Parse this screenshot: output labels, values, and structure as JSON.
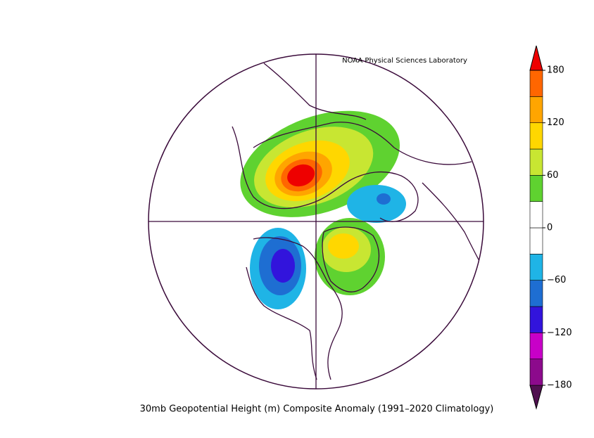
{
  "header": {
    "credit": "NOAA Physical Sciences Laboratory"
  },
  "caption": "30mb Geopotential Height (m) Composite Anomaly (1991–2020 Climatology)",
  "colorbar": {
    "lim": [
      -180,
      180
    ],
    "ticks": [
      180,
      120,
      60,
      0,
      {
        "value": -60,
        "label": "−60"
      },
      {
        "value": -120,
        "label": "−120"
      },
      {
        "value": -180,
        "label": "−180"
      }
    ],
    "colors": [
      "#501050",
      "#8c0a8c",
      "#c800c8",
      "#3214dc",
      "#1e6ed2",
      "#1fb4e6",
      "#ffffff",
      "#ffffff",
      "#5fd230",
      "#c8e632",
      "#ffd700",
      "#ffa500",
      "#ff6600",
      "#ee0000"
    ]
  }
}
